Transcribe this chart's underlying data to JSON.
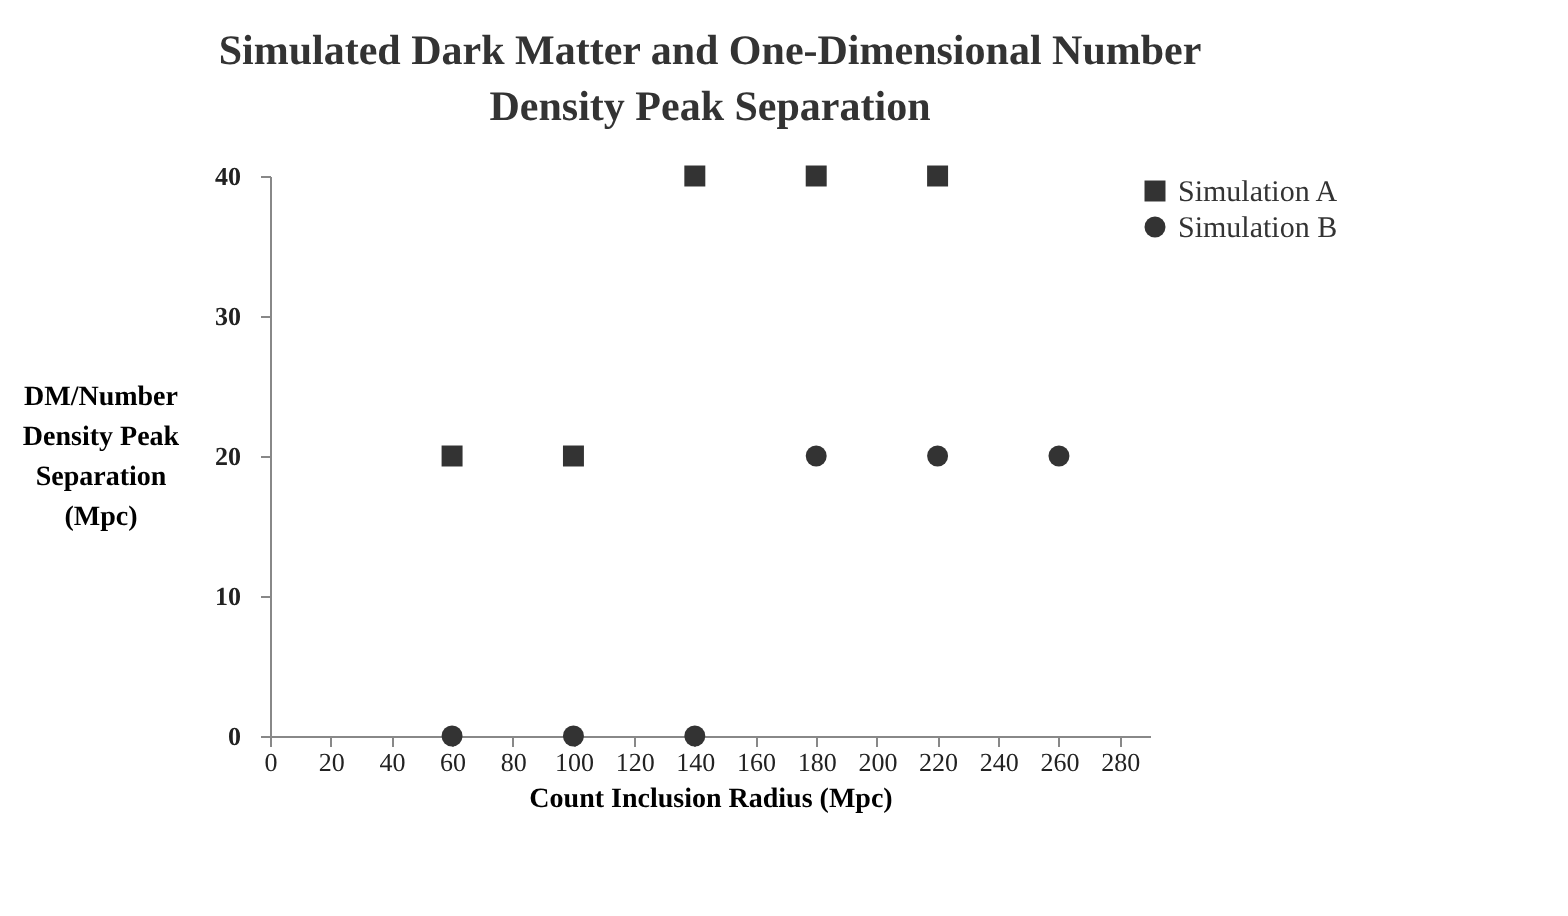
{
  "chart_data": {
    "type": "scatter",
    "title": "Simulated Dark Matter and One-Dimensional Number Density Peak Separation",
    "xlabel": "Count Inclusion Radius (Mpc)",
    "ylabel": "DM/Number Density Peak Separation (Mpc)",
    "series": [
      {
        "name": "Simulation A",
        "color": "#333333",
        "marker": "square",
        "x": [
          60,
          100,
          140,
          180,
          220
        ],
        "values": [
          20,
          20,
          40,
          40,
          40
        ]
      },
      {
        "name": "Simulation B",
        "color": "#333333",
        "marker": "circle",
        "x": [
          60,
          100,
          140,
          180,
          220,
          260
        ],
        "values": [
          0,
          0,
          0,
          20,
          20,
          20
        ]
      }
    ],
    "xlim": [
      0,
      290
    ],
    "xticks": [
      0,
      20,
      40,
      60,
      80,
      100,
      120,
      140,
      160,
      180,
      200,
      220,
      240,
      260,
      280
    ],
    "ylim": [
      0,
      40
    ],
    "yticks": [
      0,
      10,
      20,
      30,
      40
    ],
    "grid": false,
    "legend": "right"
  }
}
